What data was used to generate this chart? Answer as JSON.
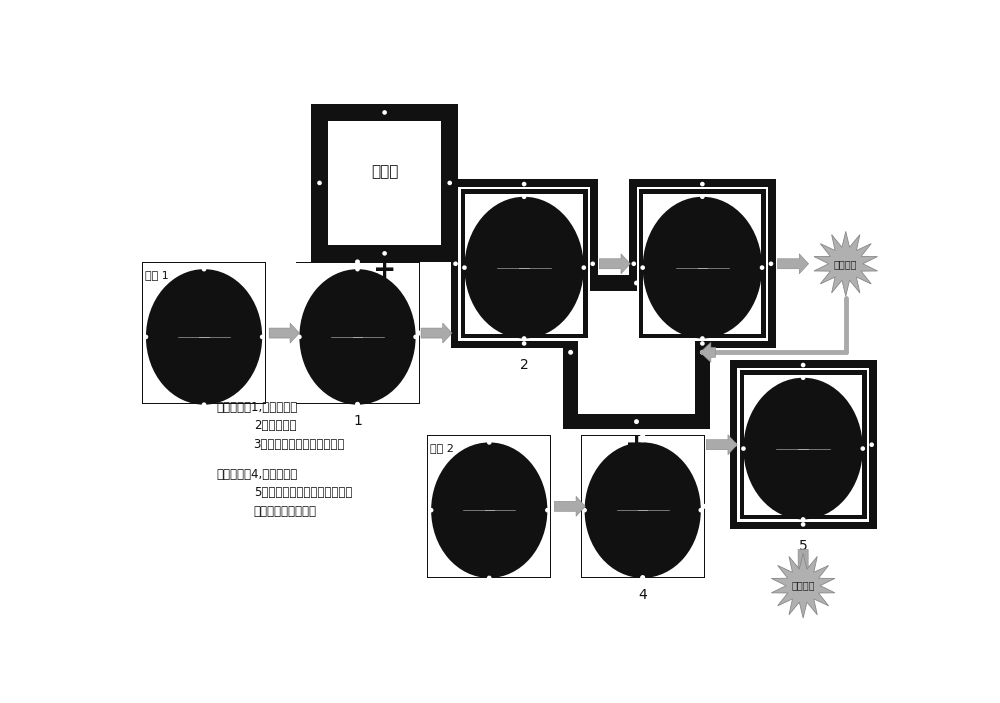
{
  "bg_color": "#ffffff",
  "dark": "#111111",
  "labels": {
    "mask_stage": "掩膜台",
    "mask1": "掩膜 1",
    "mask2": "掩膜 2",
    "uv": "紫外曝光",
    "step1_title": "一次曝光：1,掩膜作记号",
    "step1_2": "2，安装掩膜",
    "step1_3": "3，掩膜台上作掩膜位置记号",
    "step2_title": "二次曝光：4,掩膜作记号",
    "step2_5": "5，掩膜记号与掩膜台上的位置",
    "step2_5b": "记号对准，安装掩膜"
  }
}
